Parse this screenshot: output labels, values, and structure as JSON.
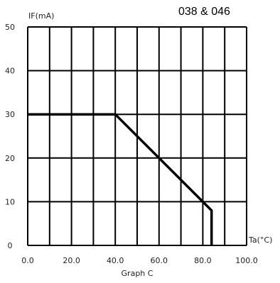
{
  "header_label": "038 & 046",
  "chart_data": {
    "type": "line",
    "title": "",
    "caption": "Graph C",
    "xlabel": "Ta(°C)",
    "ylabel": "IF(mA)",
    "xlim": [
      0,
      100
    ],
    "ylim": [
      0,
      50
    ],
    "x_ticks": [
      0,
      20,
      40,
      60,
      80,
      100
    ],
    "x_tick_labels": [
      "0.0",
      "20.0",
      "40.0",
      "60.0",
      "80.0",
      "100.0"
    ],
    "y_ticks": [
      0,
      10,
      20,
      30,
      40,
      50
    ],
    "y_tick_labels": [
      "0",
      "10",
      "20",
      "30",
      "40",
      "50"
    ],
    "grid": true,
    "series": [
      {
        "x": [
          0,
          40,
          84,
          84,
          84
        ],
        "y": [
          30,
          30,
          8,
          8,
          0
        ]
      }
    ]
  }
}
